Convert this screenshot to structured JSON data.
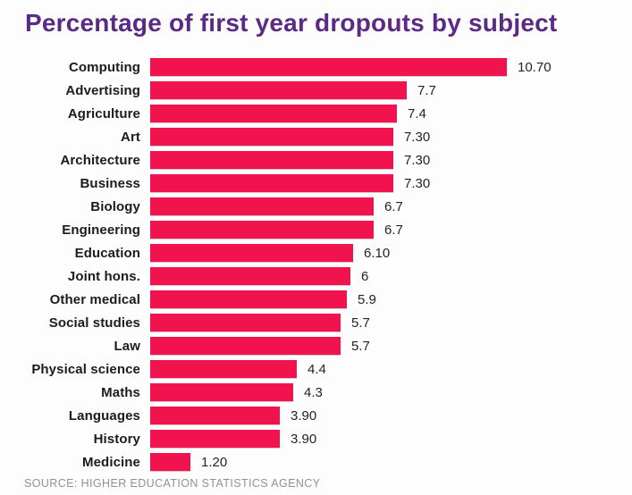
{
  "title": "Percentage of first year dropouts by subject",
  "source": "SOURCE: HIGHER EDUCATION STATISTICS AGENCY",
  "colors": {
    "bar": "#f0134e",
    "title": "#5b2a86",
    "category_label": "#1c1c1c",
    "value_label": "#242424",
    "source_text": "#919191",
    "background": "#fdfdfd"
  },
  "chart_data": {
    "type": "bar",
    "orientation": "horizontal",
    "title": "Percentage of first year dropouts by subject",
    "xlabel": "",
    "ylabel": "",
    "xlim": [
      0,
      10.7
    ],
    "grid": false,
    "legend": false,
    "categories": [
      "Computing",
      "Advertising",
      "Agriculture",
      "Art",
      "Architecture",
      "Business",
      "Biology",
      "Engineering",
      "Education",
      "Joint hons.",
      "Other medical",
      "Social studies",
      "Law",
      "Physical science",
      "Maths",
      "Languages",
      "History",
      "Medicine"
    ],
    "values": [
      10.7,
      7.7,
      7.4,
      7.3,
      7.3,
      7.3,
      6.7,
      6.7,
      6.1,
      6,
      5.9,
      5.7,
      5.7,
      4.4,
      4.3,
      3.9,
      3.9,
      1.2
    ],
    "value_labels": [
      "10.70",
      "7.7",
      "7.4",
      "7.30",
      "7.30",
      "7.30",
      "6.7",
      "6.7",
      "6.10",
      "6",
      "5.9",
      "5.7",
      "5.7",
      "4.4",
      "4.3",
      "3.90",
      "3.90",
      "1.20"
    ]
  }
}
